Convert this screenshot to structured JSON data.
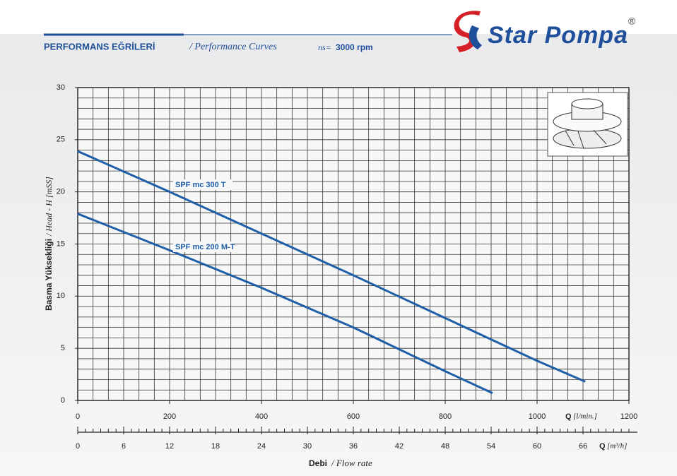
{
  "chart_data": {
    "type": "line",
    "title": "PERFORMANS EĞRİLERİ",
    "subtitle": "/ Performance Curves",
    "speed_label": "ns=",
    "speed": "3000 rpm",
    "brand": "Star Pompa",
    "registered": "®",
    "ylabel_main": "Basma Yüksekliği",
    "ylabel_sub": "/ Head - H [mSS]",
    "xlabel": "Q",
    "xunit": "[l/min.]",
    "x2label": "Q",
    "x2unit": "[m³/h]",
    "xtitle_main": "Debi",
    "xtitle_sub": "/ Flow rate",
    "xlim": [
      0,
      1200
    ],
    "xticks": [
      0,
      200,
      400,
      600,
      800,
      1000,
      1200
    ],
    "x2lim": [
      0,
      72
    ],
    "x2ticks": [
      0,
      6,
      12,
      18,
      24,
      30,
      36,
      42,
      48,
      54,
      60,
      66
    ],
    "ylim": [
      0,
      30
    ],
    "yticks": [
      0,
      5,
      10,
      15,
      20,
      25,
      30
    ],
    "grid": {
      "x2_step": 2,
      "y_step": 1
    },
    "minor_x2_step": 1,
    "series": [
      {
        "name": "SPF mc 300 T",
        "color": "#1f5fa8",
        "x": [
          0,
          200,
          400,
          600,
          800,
          1000,
          1105
        ],
        "values": [
          23.9,
          20,
          16,
          12,
          7.9,
          3.8,
          1.8
        ]
      },
      {
        "name": "SPF mc 200 M-T",
        "color": "#1f5fa8",
        "x": [
          0,
          200,
          400,
          500,
          600,
          800,
          903
        ],
        "values": [
          17.9,
          14.4,
          10.8,
          8.9,
          7,
          2.8,
          0.7
        ]
      }
    ]
  }
}
